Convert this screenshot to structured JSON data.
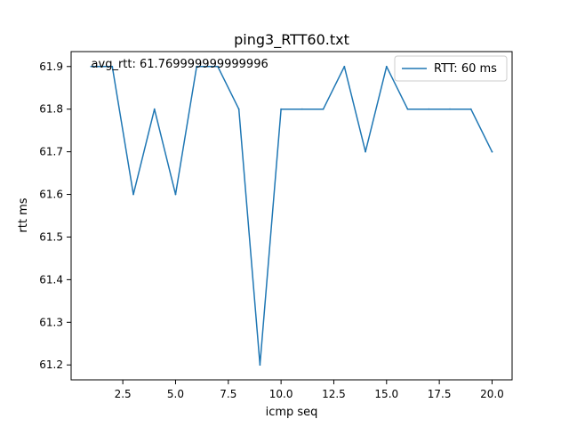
{
  "chart_data": {
    "type": "line",
    "title": "ping3_RTT60.txt",
    "xlabel": "icmp seq",
    "ylabel": "rtt ms",
    "xlim": [
      0.05,
      20.95
    ],
    "ylim": [
      61.165,
      61.935
    ],
    "x_ticks": [
      2.5,
      5.0,
      7.5,
      10.0,
      12.5,
      15.0,
      17.5,
      20.0
    ],
    "x_tick_labels": [
      "2.5",
      "5.0",
      "7.5",
      "10.0",
      "12.5",
      "15.0",
      "17.5",
      "20.0"
    ],
    "y_ticks": [
      61.2,
      61.3,
      61.4,
      61.5,
      61.6,
      61.7,
      61.8,
      61.9
    ],
    "y_tick_labels": [
      "61.2",
      "61.3",
      "61.4",
      "61.5",
      "61.6",
      "61.7",
      "61.8",
      "61.9"
    ],
    "grid": false,
    "legend_position": "top-right",
    "series": [
      {
        "name": "RTT: 60 ms",
        "color": "#1f77b4",
        "x": [
          1,
          2,
          3,
          4,
          5,
          6,
          7,
          8,
          9,
          10,
          11,
          12,
          13,
          14,
          15,
          16,
          17,
          18,
          19,
          20
        ],
        "values": [
          61.9,
          61.9,
          61.6,
          61.8,
          61.6,
          61.9,
          61.9,
          61.8,
          61.2,
          61.8,
          61.8,
          61.8,
          61.9,
          61.7,
          61.9,
          61.8,
          61.8,
          61.8,
          61.8,
          61.7
        ]
      }
    ],
    "annotation": {
      "text": "avg_rtt: 61.769999999999996",
      "x": 1,
      "y": 61.9
    }
  }
}
